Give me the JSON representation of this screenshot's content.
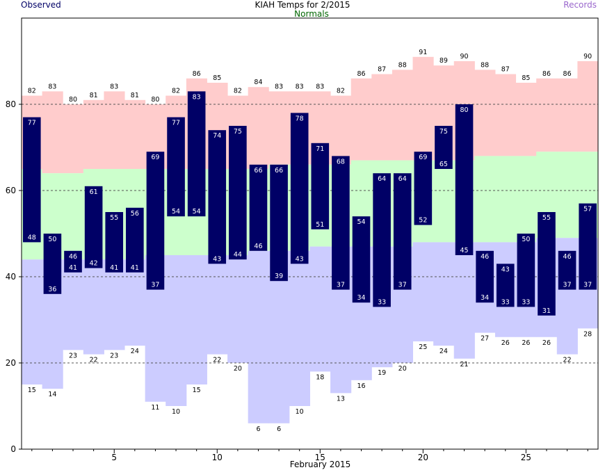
{
  "header": {
    "title": "KIAH Temps for 2/2015",
    "observed_label": "Observed",
    "normals_label": "Normals",
    "records_label": "Records"
  },
  "colors": {
    "observed": "#000066",
    "normals_label": "#006600",
    "records_label": "#9966cc",
    "record_high_band": "#ffcccc",
    "normal_band": "#ccffcc",
    "record_low_band": "#ccccff",
    "grid": "#555555"
  },
  "chart_data": {
    "type": "bar",
    "title": "KIAH Temps for 2/2015",
    "xlabel": "February 2015",
    "ylabel": "",
    "x_ticks": [
      5,
      10,
      15,
      20,
      25
    ],
    "y_ticks": [
      0,
      20,
      40,
      60,
      80
    ],
    "ylim": [
      0,
      100
    ],
    "grid": "dashed horizontal at 20, 40, 60, 80",
    "days": [
      1,
      2,
      3,
      4,
      5,
      6,
      7,
      8,
      9,
      10,
      11,
      12,
      13,
      14,
      15,
      16,
      17,
      18,
      19,
      20,
      21,
      22,
      23,
      24,
      25,
      26,
      27,
      28
    ],
    "series": [
      {
        "name": "Observed high",
        "values": [
          77,
          50,
          46,
          61,
          55,
          56,
          69,
          77,
          83,
          74,
          75,
          66,
          66,
          78,
          71,
          68,
          54,
          64,
          64,
          69,
          75,
          80,
          46,
          43,
          50,
          55,
          46,
          57
        ]
      },
      {
        "name": "Observed low",
        "values": [
          48,
          36,
          41,
          42,
          41,
          41,
          37,
          54,
          54,
          43,
          44,
          46,
          39,
          43,
          51,
          37,
          34,
          33,
          37,
          52,
          65,
          45,
          34,
          33,
          33,
          31,
          37,
          37
        ]
      },
      {
        "name": "Record high",
        "values": [
          82,
          83,
          80,
          81,
          83,
          81,
          80,
          82,
          86,
          85,
          82,
          84,
          83,
          83,
          83,
          82,
          86,
          87,
          88,
          91,
          89,
          90,
          88,
          87,
          85,
          86,
          86,
          90
        ]
      },
      {
        "name": "Record low",
        "values": [
          15,
          14,
          23,
          22,
          23,
          24,
          11,
          10,
          15,
          22,
          20,
          6,
          6,
          10,
          18,
          13,
          16,
          19,
          20,
          25,
          24,
          21,
          27,
          26,
          26,
          26,
          22,
          28
        ]
      },
      {
        "name": "Normal high",
        "values": [
          65,
          64,
          64,
          65,
          65,
          65,
          65,
          65,
          65,
          65,
          65,
          65,
          66,
          66,
          66,
          66,
          67,
          67,
          67,
          67,
          67,
          67,
          68,
          68,
          68,
          69,
          69,
          69
        ]
      },
      {
        "name": "Normal low",
        "values": [
          44,
          44,
          44,
          44,
          44,
          44,
          45,
          45,
          45,
          45,
          45,
          46,
          46,
          46,
          47,
          47,
          47,
          47,
          47,
          48,
          48,
          48,
          48,
          48,
          48,
          49,
          49,
          49
        ]
      }
    ]
  }
}
